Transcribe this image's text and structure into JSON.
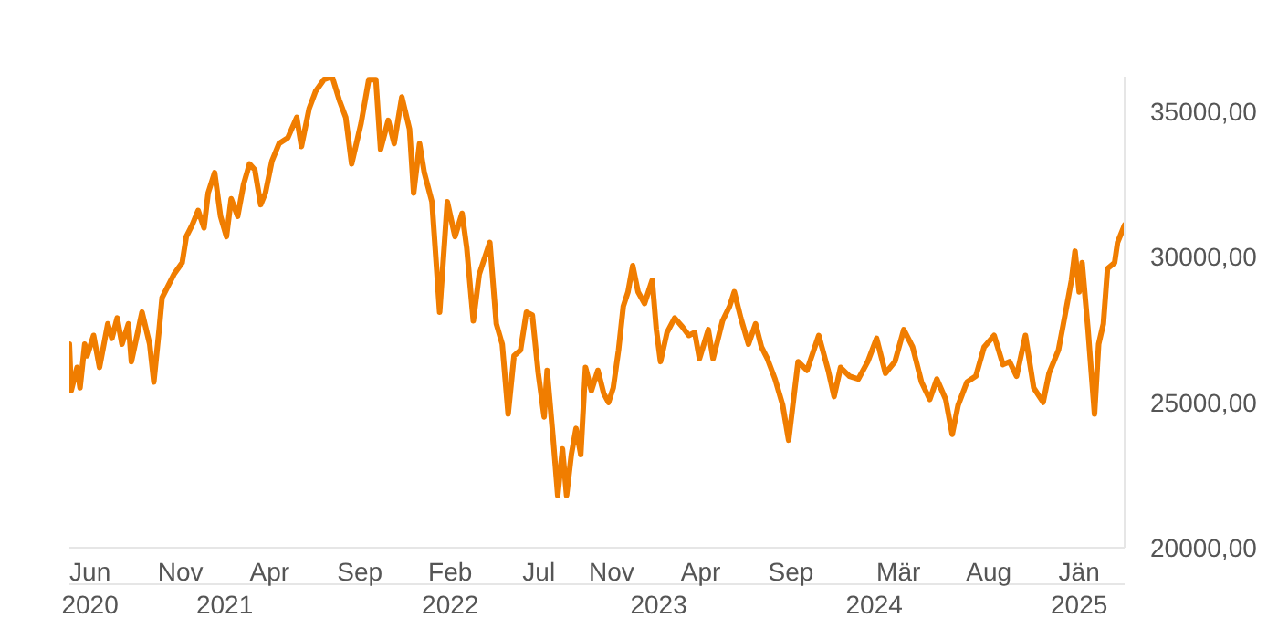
{
  "chart_data": {
    "type": "line",
    "x": [
      "2020-04-27",
      "2020-04-30",
      "2020-05-10",
      "2020-05-15",
      "2020-05-23",
      "2020-05-27",
      "2020-06-07",
      "2020-06-17",
      "2020-07-01",
      "2020-07-08",
      "2020-07-17",
      "2020-07-25",
      "2020-08-05",
      "2020-08-10",
      "2020-08-28",
      "2020-09-10",
      "2020-09-17",
      "2020-09-26",
      "2020-10-01",
      "2020-10-11",
      "2020-10-21",
      "2020-11-04",
      "2020-11-11",
      "2020-11-21",
      "2020-12-01",
      "2020-12-11",
      "2020-12-18",
      "2020-12-29",
      "2021-01-08",
      "2021-01-18",
      "2021-01-26",
      "2021-02-06",
      "2021-02-16",
      "2021-02-26",
      "2021-03-07",
      "2021-03-17",
      "2021-03-25",
      "2021-04-05",
      "2021-04-17",
      "2021-05-02",
      "2021-05-17",
      "2021-05-25",
      "2021-06-07",
      "2021-06-18",
      "2021-07-02",
      "2021-07-16",
      "2021-07-28",
      "2021-08-08",
      "2021-08-18",
      "2021-09-03",
      "2021-09-16",
      "2021-09-28",
      "2021-10-06",
      "2021-10-19",
      "2021-10-29",
      "2021-11-11",
      "2021-11-24",
      "2021-12-01",
      "2021-12-11",
      "2021-12-19",
      "2022-01-01",
      "2022-01-14",
      "2022-01-27",
      "2022-02-09",
      "2022-02-21",
      "2022-03-01",
      "2022-03-12",
      "2022-03-22",
      "2022-04-04",
      "2022-04-09",
      "2022-04-20",
      "2022-04-30",
      "2022-05-10",
      "2022-05-20",
      "2022-05-31",
      "2022-06-10",
      "2022-06-20",
      "2022-06-30",
      "2022-07-10",
      "2022-07-15",
      "2022-07-25",
      "2022-08-02",
      "2022-08-10",
      "2022-08-17",
      "2022-08-25",
      "2022-09-02",
      "2022-09-10",
      "2022-09-18",
      "2022-09-28",
      "2022-10-09",
      "2022-10-19",
      "2022-10-27",
      "2022-11-04",
      "2022-11-13",
      "2022-11-21",
      "2022-11-29",
      "2022-12-07",
      "2022-12-16",
      "2022-12-27",
      "2023-01-09",
      "2023-01-16",
      "2023-01-23",
      "2023-02-03",
      "2023-02-16",
      "2023-03-01",
      "2023-03-12",
      "2023-03-22",
      "2023-03-30",
      "2023-04-14",
      "2023-04-22",
      "2023-05-08",
      "2023-05-20",
      "2023-05-28",
      "2023-06-08",
      "2023-06-21",
      "2023-07-03",
      "2023-07-13",
      "2023-07-23",
      "2023-08-05",
      "2023-08-18",
      "2023-08-28",
      "2023-09-13",
      "2023-09-28",
      "2023-10-18",
      "2023-11-03",
      "2023-11-13",
      "2023-11-24",
      "2023-12-09",
      "2023-12-24",
      "2024-01-09",
      "2024-01-24",
      "2024-02-08",
      "2024-02-24",
      "2024-03-10",
      "2024-03-25",
      "2024-04-09",
      "2024-04-23",
      "2024-05-05",
      "2024-05-20",
      "2024-05-31",
      "2024-06-10",
      "2024-06-25",
      "2024-07-10",
      "2024-07-24",
      "2024-08-10",
      "2024-08-25",
      "2024-09-05",
      "2024-09-17",
      "2024-10-02",
      "2024-10-16",
      "2024-11-01",
      "2024-11-11",
      "2024-11-27",
      "2024-12-09",
      "2024-12-19",
      "2024-12-25",
      "2025-01-01",
      "2025-01-06",
      "2025-01-16",
      "2025-01-27",
      "2025-02-03",
      "2025-02-11",
      "2025-02-18",
      "2025-03-02",
      "2025-03-07",
      "2025-03-19"
    ],
    "series": [
      {
        "color": "#f07d00",
        "values": [
          27000,
          25400,
          26200,
          25500,
          27000,
          26600,
          27300,
          26200,
          27700,
          27200,
          27900,
          27000,
          27700,
          26400,
          28100,
          27000,
          25700,
          27500,
          28600,
          29000,
          29400,
          29800,
          30700,
          31100,
          31600,
          31000,
          32200,
          32900,
          31400,
          30700,
          32000,
          31400,
          32500,
          33200,
          33000,
          31800,
          32200,
          33300,
          33900,
          34100,
          34800,
          33800,
          35100,
          35700,
          36100,
          36200,
          35400,
          34800,
          33200,
          34600,
          36100,
          36100,
          33700,
          34700,
          33900,
          35500,
          34400,
          32200,
          33900,
          32900,
          31900,
          28100,
          31900,
          30700,
          31500,
          30300,
          27800,
          29400,
          30200,
          30500,
          27700,
          27000,
          24600,
          26600,
          26800,
          28100,
          28000,
          26000,
          24500,
          26100,
          23800,
          21800,
          23400,
          21800,
          23200,
          24100,
          23200,
          26200,
          25400,
          26100,
          25300,
          25000,
          25500,
          26800,
          28300,
          28800,
          29700,
          28800,
          28400,
          29200,
          27500,
          26400,
          27400,
          27900,
          27600,
          27300,
          27400,
          26500,
          27500,
          26500,
          27800,
          28300,
          28800,
          27900,
          27000,
          27700,
          26900,
          26500,
          25800,
          24900,
          23700,
          26400,
          26100,
          27300,
          26100,
          25200,
          26200,
          25900,
          25800,
          26400,
          27200,
          26000,
          26400,
          27500,
          26900,
          25700,
          25100,
          25800,
          25100,
          23900,
          24900,
          25700,
          25900,
          26900,
          27300,
          26300,
          26400,
          25900,
          27300,
          25500,
          25000,
          26000,
          26800,
          28100,
          29200,
          30200,
          28800,
          29800,
          27500,
          24600,
          27000,
          27700,
          29600,
          29800,
          30500,
          31100
        ]
      }
    ],
    "xlim": [
      "2020-04-27",
      "2025-03-19"
    ],
    "x2lim": [
      "2020-04-27",
      "2025-03-19"
    ],
    "ylim": [
      20000,
      36200
    ],
    "xticks": [
      {
        "value": "2020-06-01",
        "label": "Jun"
      },
      {
        "value": "2020-11-01",
        "label": "Nov"
      },
      {
        "value": "2021-04-01",
        "label": "Apr"
      },
      {
        "value": "2021-09-01",
        "label": "Sep"
      },
      {
        "value": "2022-02-01",
        "label": "Feb"
      },
      {
        "value": "2022-07-01",
        "label": "Jul"
      },
      {
        "value": "2022-11-01",
        "label": "Nov"
      },
      {
        "value": "2023-04-01",
        "label": "Apr"
      },
      {
        "value": "2023-09-01",
        "label": "Sep"
      },
      {
        "value": "2024-03-01",
        "label": "Mär"
      },
      {
        "value": "2024-08-01",
        "label": "Aug"
      },
      {
        "value": "2025-01-01",
        "label": "Jän"
      }
    ],
    "x2ticks": [
      {
        "value": "2020-06-01",
        "label": "2020"
      },
      {
        "value": "2021-01-15",
        "label": "2021"
      },
      {
        "value": "2022-02-01",
        "label": "2022"
      },
      {
        "value": "2023-01-20",
        "label": "2023"
      },
      {
        "value": "2024-01-20",
        "label": "2024"
      },
      {
        "value": "2025-01-01",
        "label": "2025"
      }
    ],
    "yticks": [
      {
        "value": 20000,
        "label": "20000,00"
      },
      {
        "value": 25000,
        "label": "25000,00"
      },
      {
        "value": 30000,
        "label": "30000,00"
      },
      {
        "value": 35000,
        "label": "35000,00"
      }
    ],
    "grid": false,
    "legend": false,
    "marker": "none",
    "line_style": "solid"
  }
}
